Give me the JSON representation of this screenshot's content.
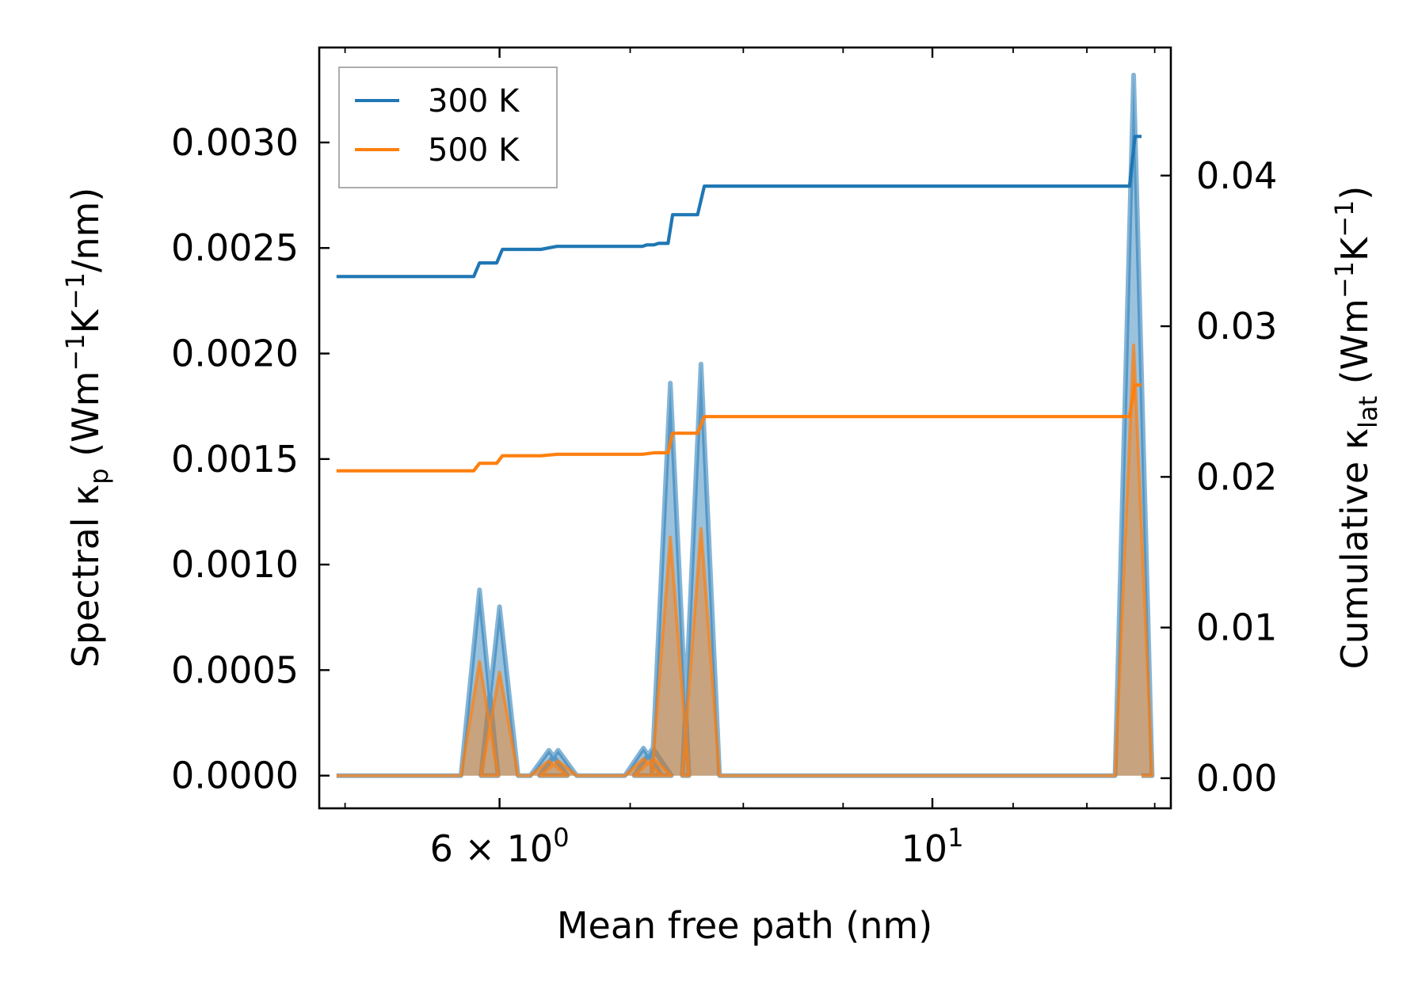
{
  "chart_data": {
    "type": "line",
    "xscale": "log",
    "xlabel": "Mean free path (nm)",
    "ylabel_left": {
      "prefix": "Spectral κ",
      "sub": "p",
      "suffix": " (Wm",
      "exp1": "−1",
      "mid": "K",
      "exp2": "−1",
      "tail": "/nm)"
    },
    "ylabel_right": {
      "prefix": "Cumulative κ",
      "sub": "lat",
      "suffix": " (Wm",
      "exp1": "−1",
      "mid": "K",
      "exp2": "−1",
      "tail": ")"
    },
    "xlim": [
      4.85,
      13.25
    ],
    "ylim_left": [
      -0.000155,
      0.00345
    ],
    "ylim_right": [
      -0.002,
      0.0485
    ],
    "x_major_ticks": [
      {
        "value": 6,
        "label_base": "6 × 10",
        "label_exp": "0"
      },
      {
        "value": 10,
        "label_base": "10",
        "label_exp": "1"
      }
    ],
    "x_minor_ticks": [
      5,
      7,
      8,
      9,
      11,
      12,
      13
    ],
    "y_left_ticks": [
      {
        "value": 0,
        "label": "0.0000"
      },
      {
        "value": 0.0005,
        "label": "0.0005"
      },
      {
        "value": 0.001,
        "label": "0.0010"
      },
      {
        "value": 0.0015,
        "label": "0.0015"
      },
      {
        "value": 0.002,
        "label": "0.0020"
      },
      {
        "value": 0.0025,
        "label": "0.0025"
      },
      {
        "value": 0.003,
        "label": "0.0030"
      }
    ],
    "y_right_ticks": [
      {
        "value": 0,
        "label": "0.00"
      },
      {
        "value": 0.01,
        "label": "0.01"
      },
      {
        "value": 0.02,
        "label": "0.02"
      },
      {
        "value": 0.03,
        "label": "0.03"
      },
      {
        "value": 0.04,
        "label": "0.04"
      }
    ],
    "legend": {
      "placement": "upper-left"
    },
    "series": [
      {
        "name": "300 K",
        "color": "#1f77b4",
        "cumulative": [
          [
            4.95,
            0.0333
          ],
          [
            5.82,
            0.0333
          ],
          [
            5.86,
            0.0342
          ],
          [
            5.98,
            0.0342
          ],
          [
            6.02,
            0.0351
          ],
          [
            6.3,
            0.0351
          ],
          [
            6.36,
            0.0352
          ],
          [
            6.42,
            0.0353
          ],
          [
            7.1,
            0.0353
          ],
          [
            7.14,
            0.0354
          ],
          [
            7.2,
            0.0354
          ],
          [
            7.24,
            0.0355
          ],
          [
            7.32,
            0.0355
          ],
          [
            7.36,
            0.0374
          ],
          [
            7.58,
            0.0374
          ],
          [
            7.64,
            0.0393
          ],
          [
            12.62,
            0.0393
          ],
          [
            12.7,
            0.0426
          ],
          [
            12.8,
            0.0426
          ]
        ],
        "spectral_peaks": [
          [
            5.86,
            0.00088
          ],
          [
            6.0,
            0.0008
          ],
          [
            6.36,
            0.00012
          ],
          [
            6.43,
            0.00012
          ],
          [
            7.11,
            0.00013
          ],
          [
            7.19,
            0.00013
          ],
          [
            7.34,
            0.00186
          ],
          [
            7.61,
            0.00195
          ],
          [
            12.68,
            0.00332
          ]
        ]
      },
      {
        "name": "500 K",
        "color": "#ff7f0e",
        "cumulative": [
          [
            4.95,
            0.0204
          ],
          [
            5.82,
            0.0204
          ],
          [
            5.86,
            0.0209
          ],
          [
            5.98,
            0.0209
          ],
          [
            6.02,
            0.0214
          ],
          [
            6.3,
            0.0214
          ],
          [
            6.42,
            0.0215
          ],
          [
            7.1,
            0.0215
          ],
          [
            7.2,
            0.0216
          ],
          [
            7.32,
            0.0216
          ],
          [
            7.36,
            0.0229
          ],
          [
            7.58,
            0.0229
          ],
          [
            7.64,
            0.024
          ],
          [
            12.62,
            0.024
          ],
          [
            12.7,
            0.0261
          ],
          [
            12.8,
            0.0261
          ]
        ],
        "spectral_peaks": [
          [
            5.86,
            0.00054
          ],
          [
            6.0,
            0.00049
          ],
          [
            6.36,
            7e-05
          ],
          [
            6.43,
            7e-05
          ],
          [
            7.11,
            8e-05
          ],
          [
            7.19,
            8e-05
          ],
          [
            7.34,
            0.00113
          ],
          [
            7.61,
            0.00117
          ],
          [
            12.68,
            0.00204
          ]
        ]
      }
    ]
  }
}
